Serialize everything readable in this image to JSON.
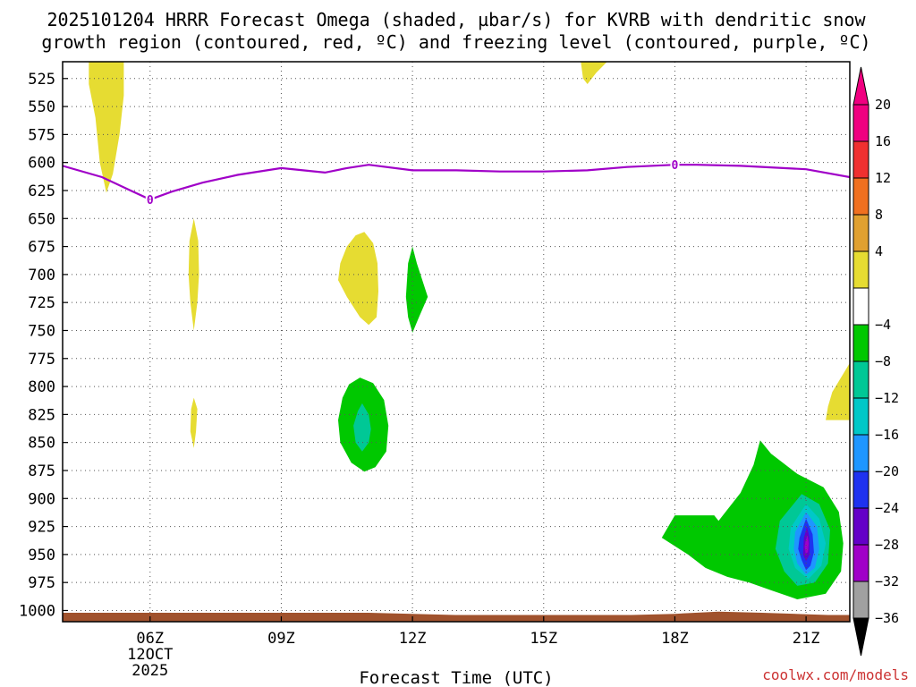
{
  "chart_data": {
    "type": "contour",
    "title_line1": "2025101204 HRRR Forecast Omega (shaded, µbar/s) for KVRB with dendritic snow",
    "title_line2": "growth region (contoured, red, ºC) and freezing level (contoured, purple, ºC)",
    "xlabel": "Forecast Time (UTC)",
    "ylabel": "",
    "credit": "coolwx.com/models",
    "x_range_hours": [
      4,
      22
    ],
    "y_range_hpa": [
      510,
      1010
    ],
    "y_ticks": [
      525,
      550,
      575,
      600,
      625,
      650,
      675,
      700,
      725,
      750,
      775,
      800,
      825,
      850,
      875,
      900,
      925,
      950,
      975,
      1000
    ],
    "x_ticks": [
      {
        "hour": 6,
        "label": "06Z",
        "sub1": "12OCT",
        "sub2": "2025"
      },
      {
        "hour": 9,
        "label": "09Z"
      },
      {
        "hour": 12,
        "label": "12Z"
      },
      {
        "hour": 15,
        "label": "15Z"
      },
      {
        "hour": 18,
        "label": "18Z"
      },
      {
        "hour": 21,
        "label": "21Z"
      }
    ],
    "colorbar": {
      "labels": [
        "20",
        "16",
        "12",
        "8",
        "4",
        "−4",
        "−8",
        "−12",
        "−16",
        "−20",
        "−24",
        "−28",
        "−32",
        "−36"
      ],
      "colors": [
        "#f00080",
        "#f03030",
        "#f07020",
        "#e0a030",
        "#e6dc32",
        "#ffffff",
        "#00c800",
        "#00c896",
        "#00c8c8",
        "#1e96ff",
        "#1e32f0",
        "#6400c8",
        "#a000c8",
        "#a0a0a0"
      ],
      "top_arrow_color": "#f00080",
      "bottom_arrow_color": "#000000"
    },
    "freezing_level": {
      "label": "0",
      "color": "#a000c8",
      "points": [
        [
          4.0,
          603
        ],
        [
          4.9,
          613
        ],
        [
          5.5,
          624
        ],
        [
          6.0,
          633
        ],
        [
          6.5,
          626
        ],
        [
          7.2,
          618
        ],
        [
          8.0,
          611
        ],
        [
          9.0,
          605
        ],
        [
          9.5,
          607
        ],
        [
          10.0,
          609
        ],
        [
          10.5,
          605
        ],
        [
          11.0,
          602
        ],
        [
          12.0,
          607
        ],
        [
          13.0,
          607
        ],
        [
          14.0,
          608
        ],
        [
          15.0,
          608
        ],
        [
          16.0,
          607
        ],
        [
          16.9,
          604
        ],
        [
          18.0,
          602
        ],
        [
          18.5,
          602
        ],
        [
          19.5,
          603
        ],
        [
          21.0,
          606
        ],
        [
          22.0,
          613
        ]
      ],
      "label_points": [
        [
          6.0,
          633
        ],
        [
          18.0,
          602
        ]
      ]
    },
    "shaded_regions": [
      {
        "name": "omega-yellow-top-left",
        "color": "#e6dc32",
        "points": [
          [
            4.6,
            510
          ],
          [
            5.4,
            510
          ],
          [
            5.4,
            540
          ],
          [
            5.3,
            575
          ],
          [
            5.15,
            610
          ],
          [
            5.0,
            627
          ],
          [
            4.85,
            600
          ],
          [
            4.75,
            560
          ],
          [
            4.6,
            530
          ]
        ]
      },
      {
        "name": "omega-yellow-top-right",
        "color": "#e6dc32",
        "points": [
          [
            15.85,
            510
          ],
          [
            16.45,
            510
          ],
          [
            16.2,
            520
          ],
          [
            16.0,
            530
          ],
          [
            15.9,
            525
          ]
        ]
      },
      {
        "name": "omega-yellow-7z-upper",
        "color": "#e6dc32",
        "points": [
          [
            7.0,
            650
          ],
          [
            7.1,
            670
          ],
          [
            7.12,
            700
          ],
          [
            7.08,
            725
          ],
          [
            7.0,
            750
          ],
          [
            6.92,
            725
          ],
          [
            6.88,
            700
          ],
          [
            6.9,
            670
          ]
        ]
      },
      {
        "name": "omega-yellow-7z-lower",
        "color": "#e6dc32",
        "points": [
          [
            7.0,
            810
          ],
          [
            7.08,
            820
          ],
          [
            7.05,
            840
          ],
          [
            7.0,
            855
          ],
          [
            6.92,
            840
          ],
          [
            6.94,
            820
          ]
        ]
      },
      {
        "name": "omega-yellow-11z",
        "color": "#e6dc32",
        "points": [
          [
            10.9,
            662
          ],
          [
            11.1,
            672
          ],
          [
            11.2,
            690
          ],
          [
            11.22,
            715
          ],
          [
            11.18,
            738
          ],
          [
            11.0,
            745
          ],
          [
            10.8,
            738
          ],
          [
            10.5,
            720
          ],
          [
            10.3,
            705
          ],
          [
            10.35,
            690
          ],
          [
            10.5,
            675
          ],
          [
            10.7,
            665
          ]
        ]
      },
      {
        "name": "omega-green-12z",
        "color": "#00c800",
        "points": [
          [
            12.0,
            675
          ],
          [
            12.1,
            690
          ],
          [
            12.35,
            720
          ],
          [
            12.15,
            738
          ],
          [
            12.0,
            752
          ],
          [
            11.9,
            738
          ],
          [
            11.85,
            720
          ],
          [
            11.9,
            690
          ]
        ]
      },
      {
        "name": "omega-green-11z",
        "color": "#00c800",
        "points": [
          [
            10.8,
            792
          ],
          [
            11.1,
            797
          ],
          [
            11.35,
            812
          ],
          [
            11.45,
            835
          ],
          [
            11.4,
            858
          ],
          [
            11.15,
            872
          ],
          [
            10.9,
            876
          ],
          [
            10.6,
            868
          ],
          [
            10.35,
            850
          ],
          [
            10.3,
            830
          ],
          [
            10.4,
            810
          ],
          [
            10.55,
            798
          ]
        ]
      },
      {
        "name": "omega-teal-11z",
        "color": "#00c896",
        "points": [
          [
            10.85,
            815
          ],
          [
            11.0,
            825
          ],
          [
            11.05,
            838
          ],
          [
            11.0,
            850
          ],
          [
            10.85,
            858
          ],
          [
            10.7,
            850
          ],
          [
            10.65,
            835
          ],
          [
            10.75,
            822
          ]
        ]
      },
      {
        "name": "omega-yellow-right-edge",
        "color": "#e6dc32",
        "points": [
          [
            21.6,
            805
          ],
          [
            22.0,
            779
          ],
          [
            22.0,
            830
          ],
          [
            21.45,
            830
          ],
          [
            21.5,
            818
          ]
        ]
      },
      {
        "name": "omega-green-lower-right",
        "color": "#00c800",
        "points": [
          [
            18.0,
            915
          ],
          [
            18.9,
            915
          ],
          [
            19.0,
            920
          ],
          [
            19.5,
            895
          ],
          [
            19.8,
            870
          ],
          [
            19.95,
            848
          ],
          [
            20.2,
            860
          ],
          [
            20.8,
            878
          ],
          [
            21.4,
            890
          ],
          [
            21.75,
            912
          ],
          [
            21.85,
            940
          ],
          [
            21.8,
            965
          ],
          [
            21.45,
            985
          ],
          [
            20.8,
            990
          ],
          [
            20.2,
            982
          ],
          [
            19.7,
            975
          ],
          [
            19.2,
            970
          ],
          [
            18.7,
            962
          ],
          [
            18.3,
            950
          ],
          [
            17.7,
            935
          ]
        ]
      },
      {
        "name": "omega-teal-lower-right",
        "color": "#00c896",
        "points": [
          [
            20.4,
            920
          ],
          [
            20.9,
            896
          ],
          [
            21.3,
            905
          ],
          [
            21.55,
            928
          ],
          [
            21.5,
            958
          ],
          [
            21.2,
            975
          ],
          [
            20.8,
            978
          ],
          [
            20.5,
            965
          ],
          [
            20.3,
            945
          ]
        ]
      },
      {
        "name": "omega-cyan-lower-right",
        "color": "#00c8c8",
        "points": [
          [
            20.65,
            926
          ],
          [
            21.0,
            905
          ],
          [
            21.3,
            918
          ],
          [
            21.45,
            940
          ],
          [
            21.35,
            960
          ],
          [
            21.05,
            972
          ],
          [
            20.75,
            962
          ],
          [
            20.6,
            945
          ]
        ]
      },
      {
        "name": "omega-lightblue-lower-right",
        "color": "#1e96ff",
        "points": [
          [
            20.75,
            930
          ],
          [
            21.0,
            912
          ],
          [
            21.25,
            925
          ],
          [
            21.3,
            945
          ],
          [
            21.2,
            962
          ],
          [
            21.0,
            968
          ],
          [
            20.8,
            958
          ],
          [
            20.72,
            945
          ]
        ]
      },
      {
        "name": "omega-blue-lower-right",
        "color": "#1e32f0",
        "points": [
          [
            20.85,
            935
          ],
          [
            21.0,
            918
          ],
          [
            21.15,
            932
          ],
          [
            21.18,
            948
          ],
          [
            21.1,
            960
          ],
          [
            21.0,
            964
          ],
          [
            20.9,
            955
          ],
          [
            20.82,
            945
          ]
        ]
      },
      {
        "name": "omega-purple-lower-right",
        "color": "#6400c8",
        "points": [
          [
            20.95,
            935
          ],
          [
            21.02,
            925
          ],
          [
            21.08,
            935
          ],
          [
            21.08,
            950
          ],
          [
            21.0,
            956
          ],
          [
            20.93,
            950
          ]
        ]
      },
      {
        "name": "omega-magenta-core",
        "color": "#a000c8",
        "points": [
          [
            20.99,
            938
          ],
          [
            21.03,
            933
          ],
          [
            21.06,
            940
          ],
          [
            21.04,
            948
          ],
          [
            20.99,
            949
          ],
          [
            20.97,
            943
          ]
        ]
      },
      {
        "name": "ground-terrain",
        "color": "#a0522d",
        "points": [
          [
            4.0,
            1002
          ],
          [
            11.0,
            1002
          ],
          [
            12.0,
            1003
          ],
          [
            13.0,
            1004
          ],
          [
            17.0,
            1004
          ],
          [
            18.0,
            1003
          ],
          [
            19.0,
            1001
          ],
          [
            20.0,
            1002
          ],
          [
            21.5,
            1004
          ],
          [
            22.0,
            1004
          ],
          [
            22.0,
            1010
          ],
          [
            4.0,
            1010
          ]
        ]
      }
    ]
  }
}
